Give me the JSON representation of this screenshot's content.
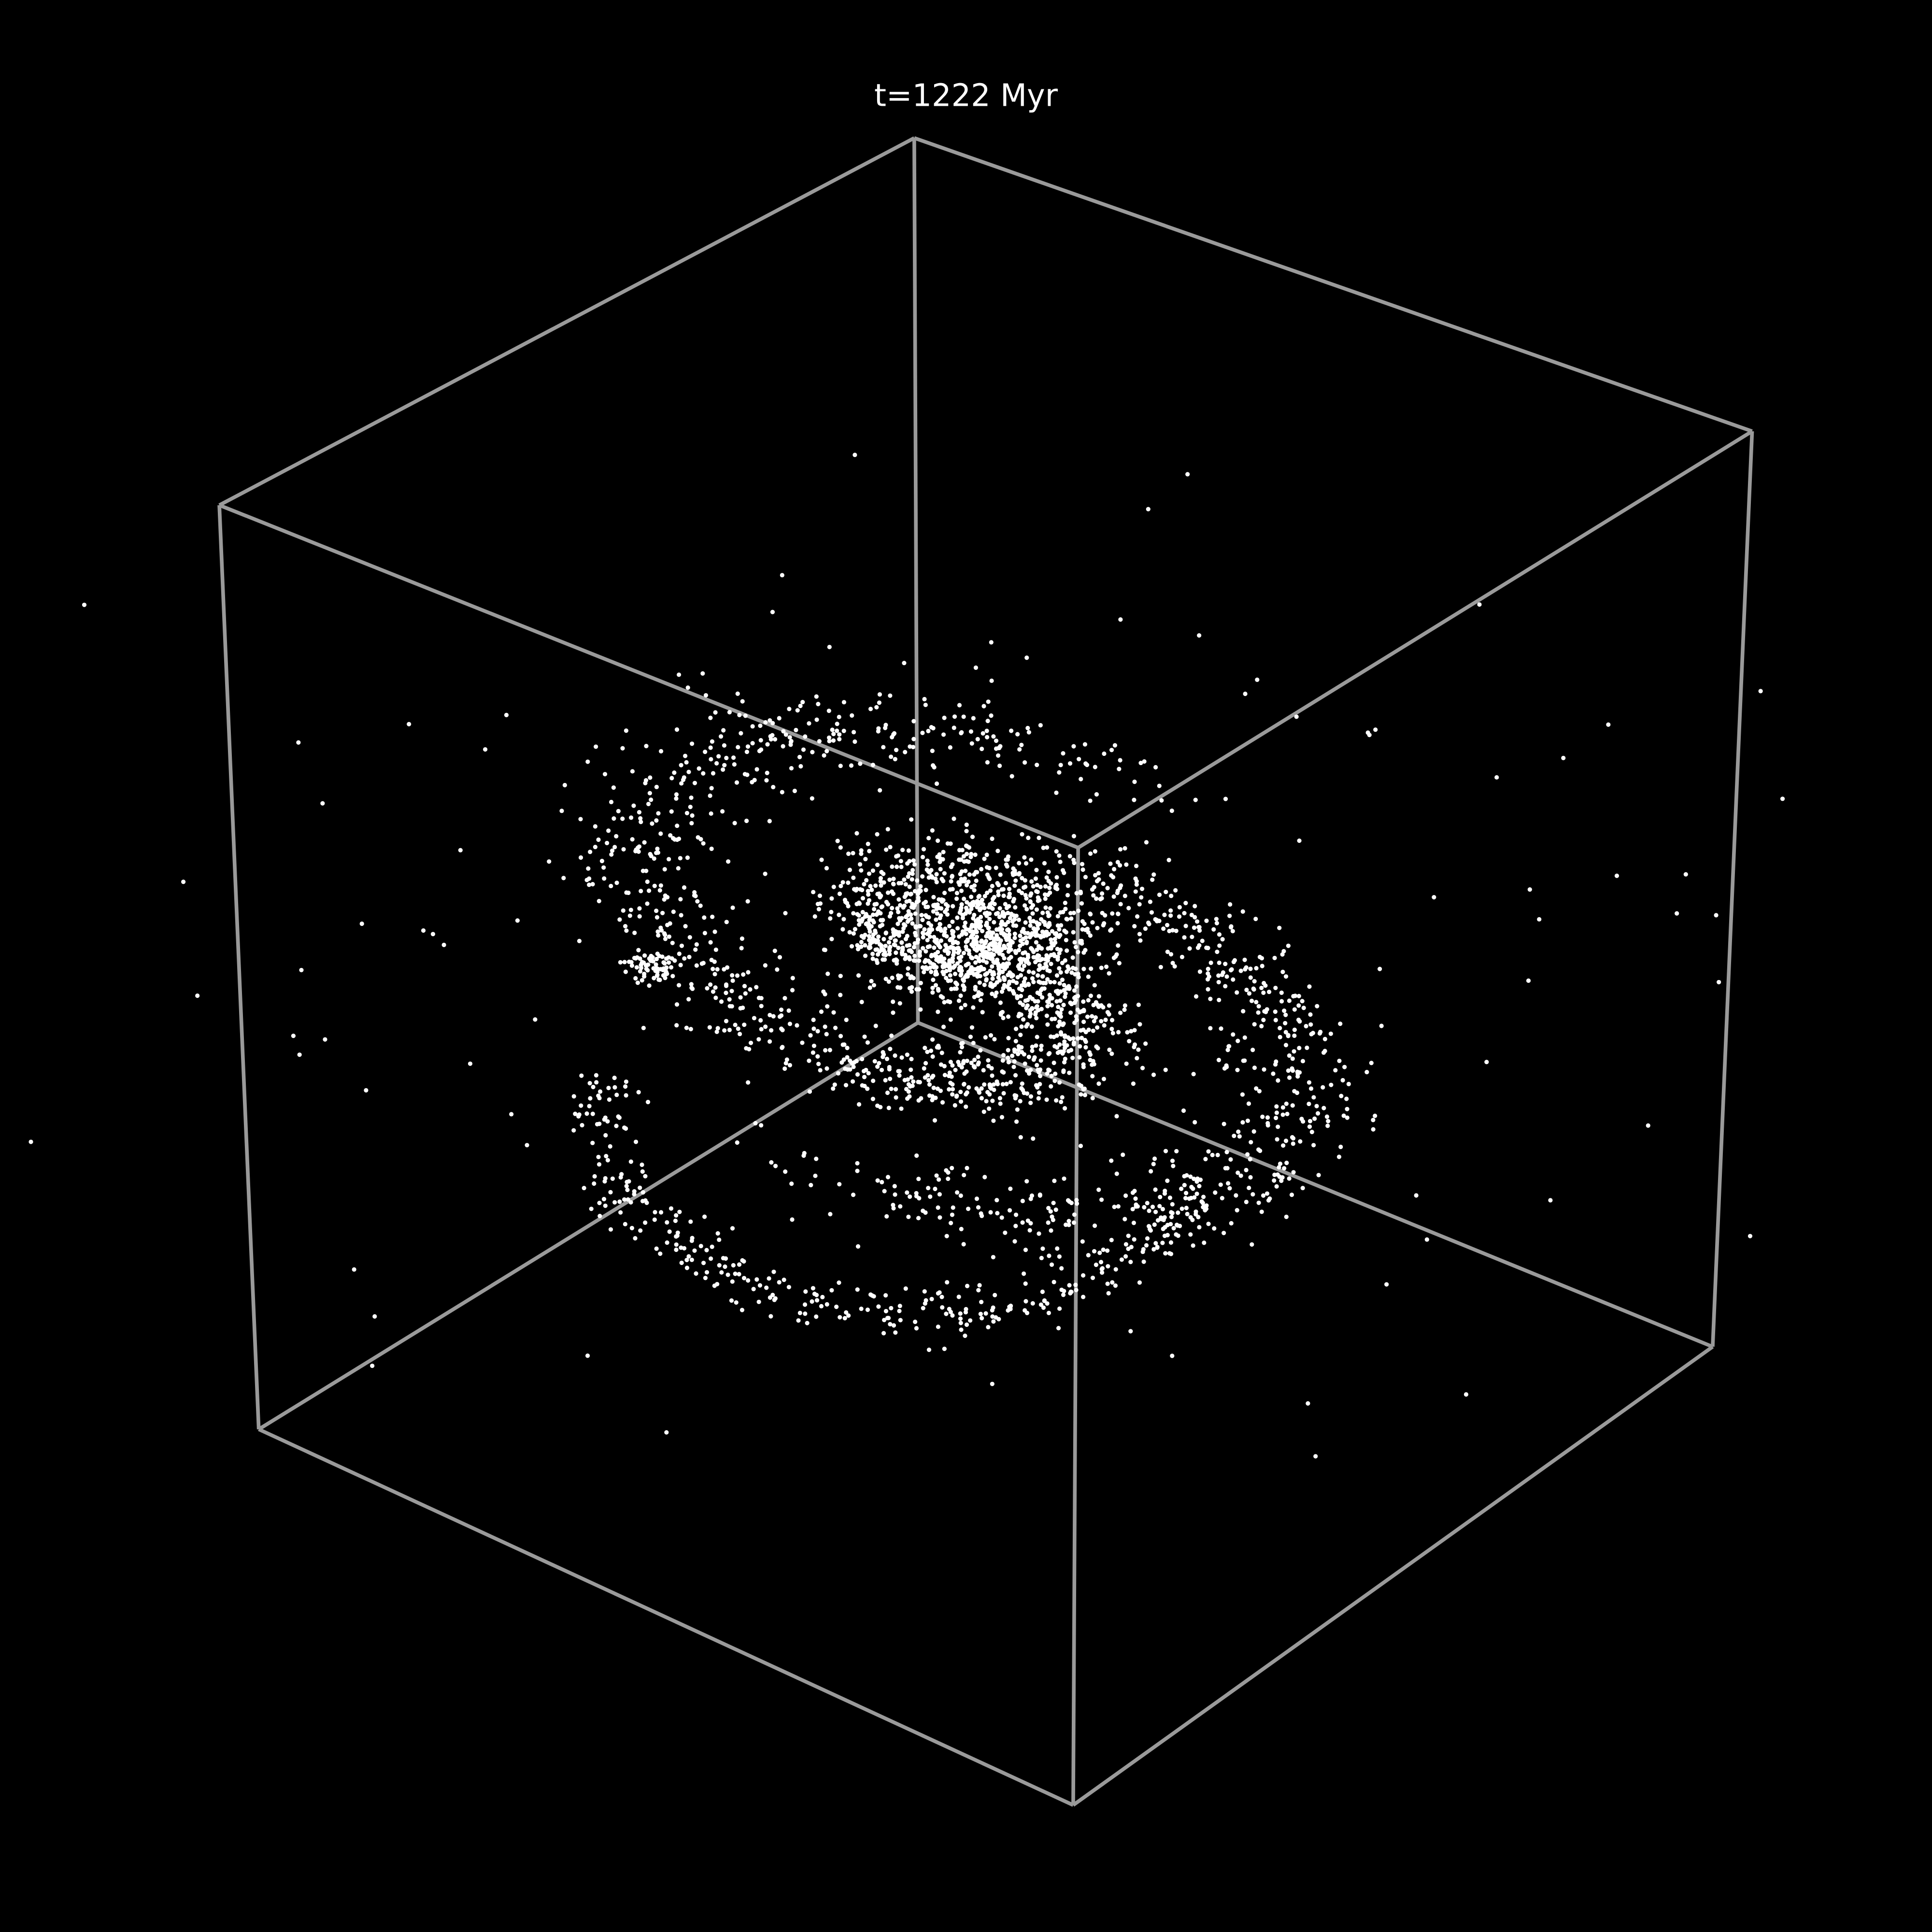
{
  "chart_data": {
    "type": "scatter3d",
    "title": "t=1222 Myr"
  }
}
